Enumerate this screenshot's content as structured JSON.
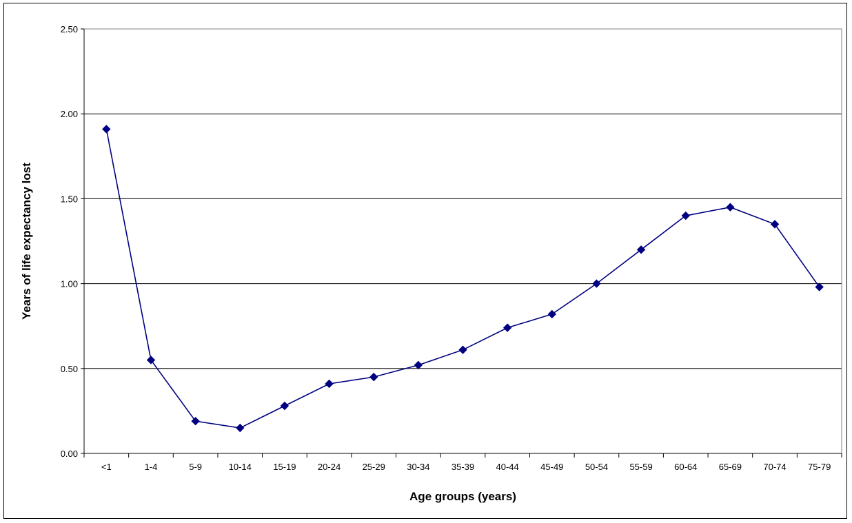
{
  "chart_data": {
    "type": "line",
    "title": "",
    "xlabel": "Age groups (years)",
    "ylabel": "Years of life expectancy lost",
    "categories": [
      "<1",
      "1-4",
      "5-9",
      "10-14",
      "15-19",
      "20-24",
      "25-29",
      "30-34",
      "35-39",
      "40-44",
      "45-49",
      "50-54",
      "55-59",
      "60-64",
      "65-69",
      "70-74",
      "75-79"
    ],
    "series": [
      {
        "values": [
          1.91,
          0.55,
          0.19,
          0.15,
          0.28,
          0.41,
          0.45,
          0.52,
          0.61,
          0.74,
          0.82,
          1.0,
          1.2,
          1.4,
          1.45,
          1.35,
          0.98
        ]
      }
    ],
    "ylim": [
      0,
      2.5
    ],
    "yticks": [
      "0.00",
      "0.50",
      "1.00",
      "1.50",
      "2.00",
      "2.50"
    ],
    "grid": true,
    "legend": "none",
    "colors": {
      "series": "#000080",
      "grid": "#000000",
      "plot_border": "#808080"
    }
  }
}
